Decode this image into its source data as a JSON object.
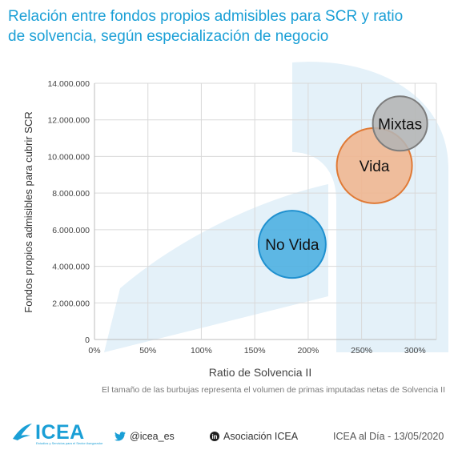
{
  "title": {
    "line1": "Relación entre fondos propios admisibles para SCR y ratio",
    "line2": "de solvencia, según especialización de negocio"
  },
  "chart_data": {
    "type": "bubble",
    "ylabel": "Fondos propios admisibles para cubrir SCR",
    "xlabel": "Ratio de Solvencia II",
    "x_ticks": [
      "0%",
      "50%",
      "100%",
      "150%",
      "200%",
      "250%",
      "300%"
    ],
    "y_ticks": [
      "0",
      "2.000.000",
      "4.000.000",
      "6.000.000",
      "8.000.000",
      "10.000.000",
      "12.000.000",
      "14.000.000"
    ],
    "xlim": [
      0,
      3.2
    ],
    "ylim": [
      0,
      14000000
    ],
    "grid": true,
    "series": [
      {
        "name": "No Vida",
        "x": 1.85,
        "y": 5200000,
        "fill": "#4aaee0",
        "stroke": "#1f90cf"
      },
      {
        "name": "Vida",
        "x": 2.62,
        "y": 9500000,
        "fill": "#f0b58e",
        "stroke": "#e07a36"
      },
      {
        "name": "Mixtas",
        "x": 2.86,
        "y": 11800000,
        "fill": "#b4b4b4",
        "stroke": "#7d7d7d"
      }
    ]
  },
  "note": "El tamaño de las burbujas representa el volumen de primas imputadas netas de Solvencia II",
  "footer": {
    "logo": "ICEA",
    "logo_sub": "Estudios y Servicios para el Sector Asegurador",
    "twitter": "@icea_es",
    "linkedin": "Asociación ICEA",
    "date": "ICEA al Día - 13/05/2020"
  }
}
